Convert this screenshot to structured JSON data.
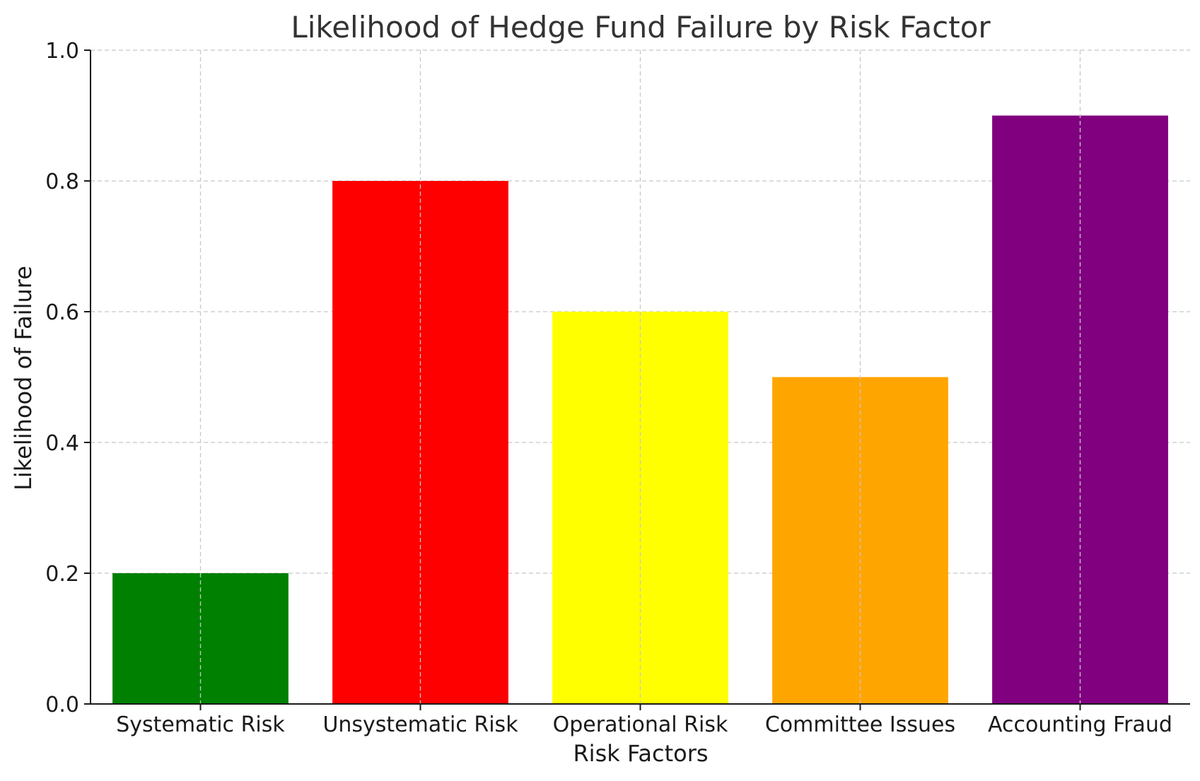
{
  "chart_data": {
    "type": "bar",
    "title": "Likelihood of Hedge Fund Failure by Risk Factor",
    "xlabel": "Risk Factors",
    "ylabel": "Likelihood of Failure",
    "categories": [
      "Systematic Risk",
      "Unsystematic Risk",
      "Operational Risk",
      "Committee Issues",
      "Accounting Fraud"
    ],
    "values": [
      0.2,
      0.8,
      0.6,
      0.5,
      0.9
    ],
    "colors": [
      "#008000",
      "#ff0000",
      "#ffff00",
      "#ffa500",
      "#800080"
    ],
    "ylim": [
      0,
      1.0
    ],
    "yticks": [
      0.0,
      0.2,
      0.4,
      0.6,
      0.8,
      1.0
    ],
    "ytick_labels": [
      "0.0",
      "0.2",
      "0.4",
      "0.6",
      "0.8",
      "1.0"
    ],
    "grid": true,
    "grid_style": "dashed"
  }
}
